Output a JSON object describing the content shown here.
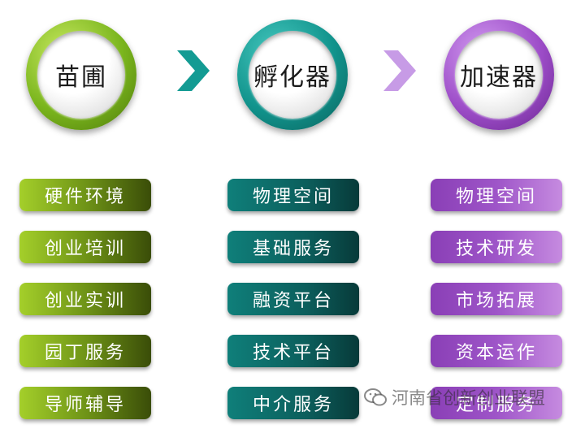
{
  "stages": [
    {
      "title": "苗圃",
      "color": "#7ab51d"
    },
    {
      "title": "孵化器",
      "color": "#11938c"
    },
    {
      "title": "加速器",
      "color": "#9d4dc8"
    }
  ],
  "columns": [
    {
      "items": [
        "硬件环境",
        "创业培训",
        "创业实训",
        "园丁服务",
        "导师辅导"
      ]
    },
    {
      "items": [
        "物理空间",
        "基础服务",
        "融资平台",
        "技术平台",
        "中介服务"
      ]
    },
    {
      "items": [
        "物理空间",
        "技术研发",
        "市场拓展",
        "资本运作",
        "定制服务"
      ]
    }
  ],
  "arrows": [
    {
      "icon": "chevron-right-icon",
      "color": "#139b93"
    },
    {
      "icon": "chevron-right-icon",
      "color": "#c79be6"
    }
  ],
  "watermark": {
    "text": "河南省创新创业联盟",
    "icon": "wechat-icon"
  }
}
